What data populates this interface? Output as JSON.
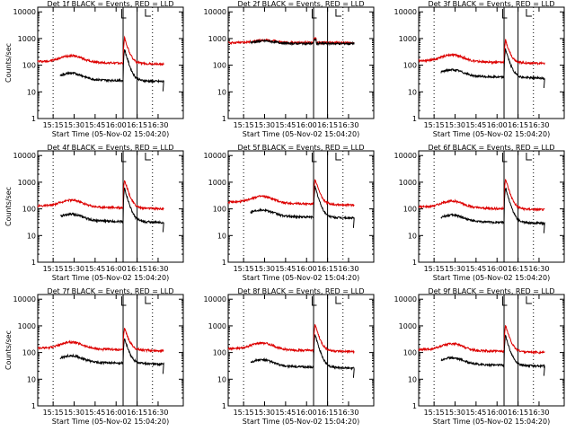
{
  "chart_data": [
    {
      "type": "line",
      "title": "Det 1f BLACK = Events, RED = LLD",
      "xlabel": "Start Time (05-Nov-02 15:04:20)",
      "ylabel": "Counts/sec",
      "yscale": "log",
      "ylim": [
        1,
        15000
      ],
      "xlim_minutes": [
        0,
        104
      ],
      "xticks": [
        "15:15",
        "15:30",
        "15:45",
        "16:00",
        "16:15",
        "16:30"
      ],
      "yticks": [
        "1",
        "10",
        "100",
        "1000",
        "10000"
      ],
      "markers": {
        "dotted": [
          "15:15",
          "16:26"
        ],
        "solid": [
          "16:05",
          "16:15"
        ]
      },
      "series": [
        {
          "name": "RED = LLD",
          "color": "#dd0000",
          "profile": "normal",
          "peak": 1100,
          "base": 140,
          "start": "15:04"
        },
        {
          "name": "BLACK = Events",
          "color": "#000000",
          "profile": "normal",
          "peak": 400,
          "base": 30,
          "start": "15:20"
        }
      ]
    },
    {
      "type": "line",
      "title": "Det 2f BLACK = Events, RED = LLD",
      "xlabel": "Start Time (05-Nov-02 15:04:20)",
      "ylabel": "",
      "yscale": "log",
      "ylim": [
        1,
        15000
      ],
      "xticks": [
        "15:15",
        "15:30",
        "15:45",
        "16:00",
        "16:15",
        "16:30"
      ],
      "yticks": [
        "1",
        "10",
        "100",
        "1000",
        "10000"
      ],
      "markers": {
        "dotted": [
          "15:15",
          "16:26"
        ],
        "solid": [
          "16:05",
          "16:15"
        ]
      },
      "series": [
        {
          "name": "RED = LLD",
          "color": "#dd0000",
          "profile": "saturated",
          "peak": 1000,
          "base": 700,
          "start": "15:04"
        },
        {
          "name": "BLACK = Events",
          "color": "#000000",
          "profile": "saturated",
          "peak": 900,
          "base": 650,
          "start": "15:20"
        }
      ]
    },
    {
      "type": "line",
      "title": "Det 3f BLACK = Events, RED = LLD",
      "xlabel": "Start Time (05-Nov-02 15:04:20)",
      "ylabel": "",
      "yscale": "log",
      "ylim": [
        1,
        15000
      ],
      "xticks": [
        "15:15",
        "15:30",
        "15:45",
        "16:00",
        "16:15",
        "16:30"
      ],
      "yticks": [
        "1",
        "10",
        "100",
        "1000",
        "10000"
      ],
      "markers": {
        "dotted": [
          "15:15",
          "16:26"
        ],
        "solid": [
          "16:05",
          "16:15"
        ]
      },
      "series": [
        {
          "name": "RED = LLD",
          "color": "#dd0000",
          "profile": "normal",
          "peak": 900,
          "base": 150,
          "start": "15:04"
        },
        {
          "name": "BLACK = Events",
          "color": "#000000",
          "profile": "normal",
          "peak": 420,
          "base": 40,
          "start": "15:20"
        }
      ]
    },
    {
      "type": "line",
      "title": "Det 4f BLACK = Events, RED = LLD",
      "xlabel": "Start Time (05-Nov-02 15:04:20)",
      "ylabel": "Counts/sec",
      "yscale": "log",
      "ylim": [
        1,
        15000
      ],
      "xticks": [
        "15:15",
        "15:30",
        "15:45",
        "16:00",
        "16:15",
        "16:30"
      ],
      "yticks": [
        "1",
        "10",
        "100",
        "1000",
        "10000"
      ],
      "markers": {
        "dotted": [
          "15:15",
          "16:26"
        ],
        "solid": [
          "16:05",
          "16:15"
        ]
      },
      "series": [
        {
          "name": "RED = LLD",
          "color": "#dd0000",
          "profile": "normal",
          "peak": 1300,
          "base": 130,
          "start": "15:04"
        },
        {
          "name": "BLACK = Events",
          "color": "#000000",
          "profile": "normal",
          "peak": 600,
          "base": 38,
          "start": "15:20"
        }
      ]
    },
    {
      "type": "line",
      "title": "Det 5f BLACK = Events, RED = LLD",
      "xlabel": "Start Time (05-Nov-02 15:04:20)",
      "ylabel": "",
      "yscale": "log",
      "ylim": [
        1,
        15000
      ],
      "xticks": [
        "15:15",
        "15:30",
        "15:45",
        "16:00",
        "16:15",
        "16:30"
      ],
      "yticks": [
        "1",
        "10",
        "100",
        "1000",
        "10000"
      ],
      "markers": {
        "dotted": [
          "15:15",
          "16:26"
        ],
        "solid": [
          "16:05",
          "16:15"
        ]
      },
      "series": [
        {
          "name": "RED = LLD",
          "color": "#dd0000",
          "profile": "normal",
          "peak": 1400,
          "base": 180,
          "start": "15:04"
        },
        {
          "name": "BLACK = Events",
          "color": "#000000",
          "profile": "normal",
          "peak": 700,
          "base": 55,
          "start": "15:20"
        }
      ]
    },
    {
      "type": "line",
      "title": "Det 6f BLACK = Events, RED = LLD",
      "xlabel": "Start Time (05-Nov-02 15:04:20)",
      "ylabel": "",
      "yscale": "log",
      "ylim": [
        1,
        15000
      ],
      "xticks": [
        "15:15",
        "15:30",
        "15:45",
        "16:00",
        "16:15",
        "16:30"
      ],
      "yticks": [
        "1",
        "10",
        "100",
        "1000",
        "10000"
      ],
      "markers": {
        "dotted": [
          "15:15",
          "16:26"
        ],
        "solid": [
          "16:05",
          "16:15"
        ]
      },
      "series": [
        {
          "name": "RED = LLD",
          "color": "#dd0000",
          "profile": "normal",
          "peak": 1400,
          "base": 120,
          "start": "15:04"
        },
        {
          "name": "BLACK = Events",
          "color": "#000000",
          "profile": "normal",
          "peak": 650,
          "base": 35,
          "start": "15:20"
        }
      ]
    },
    {
      "type": "line",
      "title": "Det 7f BLACK = Events, RED = LLD",
      "xlabel": "Start Time (05-Nov-02 15:04:20)",
      "ylabel": "Counts/sec",
      "yscale": "log",
      "ylim": [
        1,
        15000
      ],
      "xticks": [
        "15:15",
        "15:30",
        "15:45",
        "16:00",
        "16:15",
        "16:30"
      ],
      "yticks": [
        "1",
        "10",
        "100",
        "1000",
        "10000"
      ],
      "markers": {
        "dotted": [
          "15:15",
          "16:26"
        ],
        "solid": [
          "16:05",
          "16:15"
        ]
      },
      "series": [
        {
          "name": "RED = LLD",
          "color": "#dd0000",
          "profile": "normal",
          "peak": 900,
          "base": 150,
          "start": "15:04"
        },
        {
          "name": "BLACK = Events",
          "color": "#000000",
          "profile": "normal",
          "peak": 350,
          "base": 45,
          "start": "15:20"
        }
      ]
    },
    {
      "type": "line",
      "title": "Det 8f BLACK = Events, RED = LLD",
      "xlabel": "Start Time (05-Nov-02 15:04:20)",
      "ylabel": "",
      "yscale": "log",
      "ylim": [
        1,
        15000
      ],
      "xticks": [
        "15:15",
        "15:30",
        "15:45",
        "16:00",
        "16:15",
        "16:30"
      ],
      "yticks": [
        "1",
        "10",
        "100",
        "1000",
        "10000"
      ],
      "markers": {
        "dotted": [
          "15:15",
          "16:26"
        ],
        "solid": [
          "16:05",
          "16:15"
        ]
      },
      "series": [
        {
          "name": "RED = LLD",
          "color": "#dd0000",
          "profile": "normal",
          "peak": 1200,
          "base": 140,
          "start": "15:04"
        },
        {
          "name": "BLACK = Events",
          "color": "#000000",
          "profile": "normal",
          "peak": 500,
          "base": 32,
          "start": "15:20"
        }
      ]
    },
    {
      "type": "line",
      "title": "Det 9f BLACK = Events, RED = LLD",
      "xlabel": "Start Time (05-Nov-02 15:04:20)",
      "ylabel": "",
      "yscale": "log",
      "ylim": [
        1,
        15000
      ],
      "xticks": [
        "15:15",
        "15:30",
        "15:45",
        "16:00",
        "16:15",
        "16:30"
      ],
      "yticks": [
        "1",
        "10",
        "100",
        "1000",
        "10000"
      ],
      "markers": {
        "dotted": [
          "15:15",
          "16:26"
        ],
        "solid": [
          "16:05",
          "16:15"
        ]
      },
      "series": [
        {
          "name": "RED = LLD",
          "color": "#dd0000",
          "profile": "normal",
          "peak": 1100,
          "base": 130,
          "start": "15:04"
        },
        {
          "name": "BLACK = Events",
          "color": "#000000",
          "profile": "normal",
          "peak": 450,
          "base": 38,
          "start": "15:20"
        }
      ]
    }
  ]
}
